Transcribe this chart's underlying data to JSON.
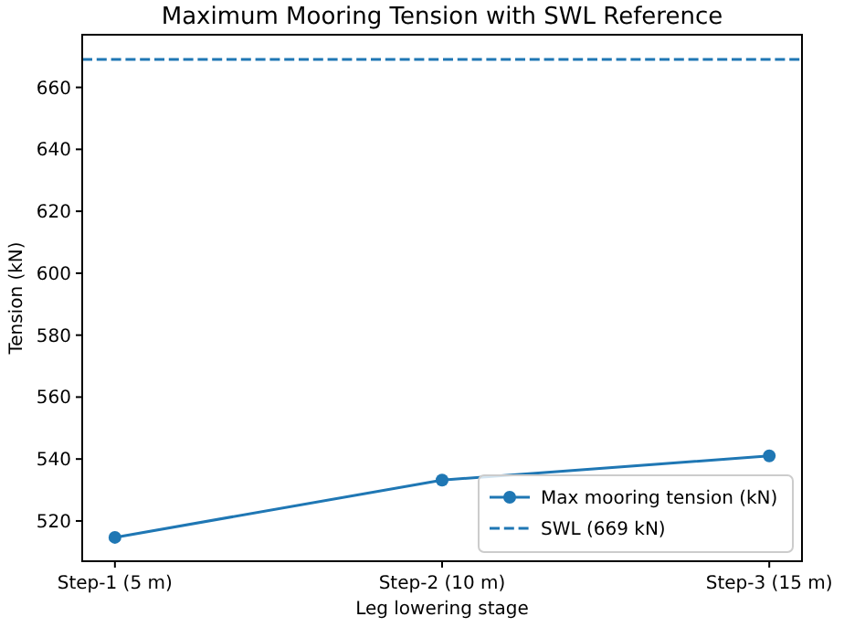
{
  "chart_data": {
    "type": "line",
    "title": "Maximum Mooring Tension with SWL Reference",
    "xlabel": "Leg lowering stage",
    "ylabel": "Tension (kN)",
    "categories": [
      "Step-1 (5 m)",
      "Step-2 (10 m)",
      "Step-3 (15 m)"
    ],
    "series": [
      {
        "name": "Max mooring tension (kN)",
        "color": "#1f77b4",
        "values": [
          514.7,
          533.2,
          541.0
        ]
      }
    ],
    "ref_lines": [
      {
        "axis": "y",
        "value": 669,
        "label": "SWL (669 kN)",
        "color": "#1f77b4",
        "line_style": "dashed"
      }
    ],
    "ylim": [
      507,
      677
    ],
    "yticks": [
      520,
      540,
      560,
      580,
      600,
      620,
      640,
      660
    ],
    "marker": "circle",
    "line_style": "solid",
    "legend": "bottom right",
    "grid": false
  }
}
